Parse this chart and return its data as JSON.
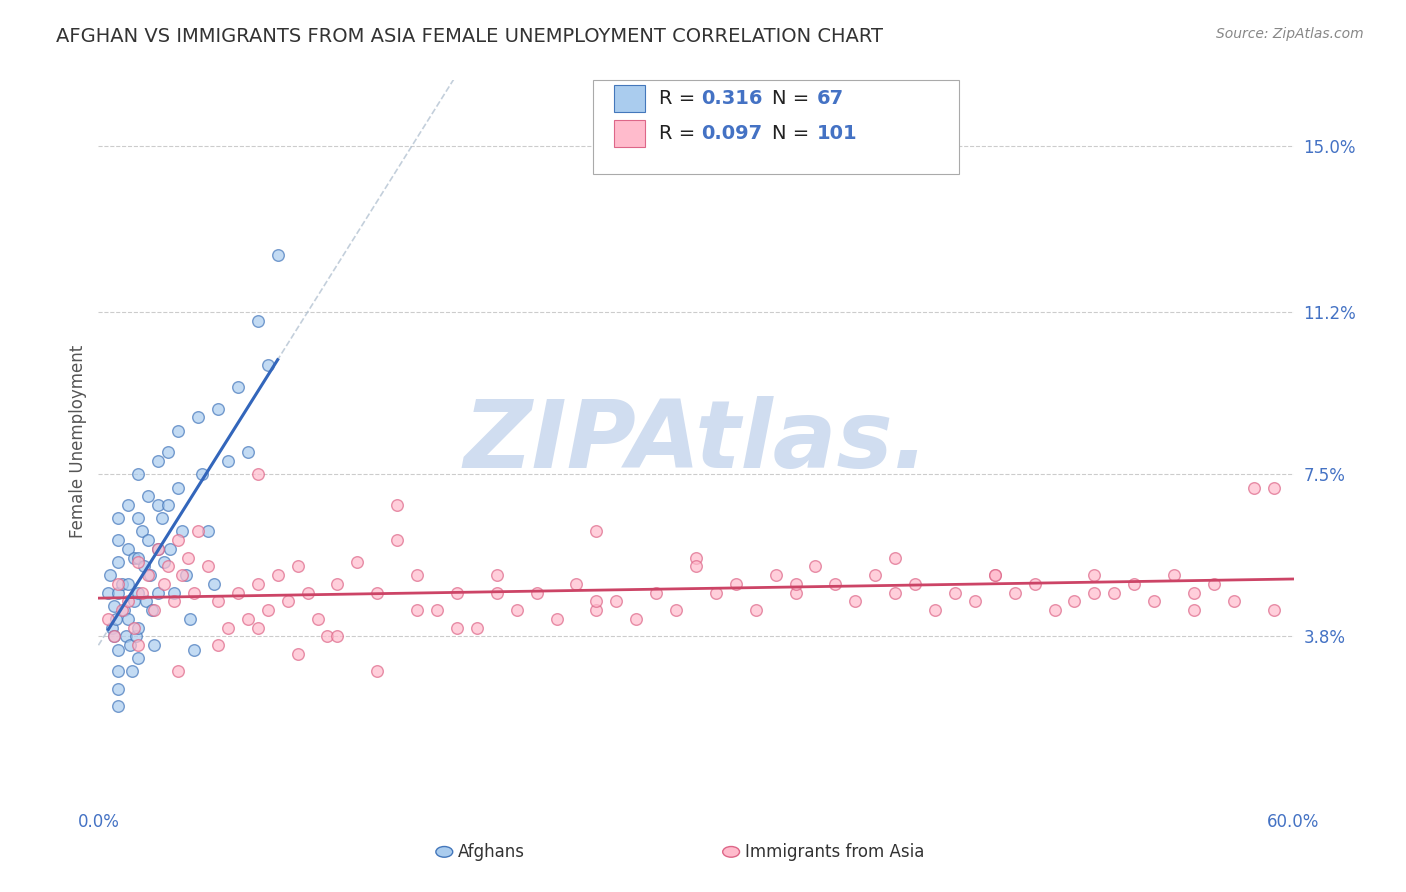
{
  "title": "AFGHAN VS IMMIGRANTS FROM ASIA FEMALE UNEMPLOYMENT CORRELATION CHART",
  "source": "Source: ZipAtlas.com",
  "watermark": "ZIPAtlas.",
  "ylabel": "Female Unemployment",
  "xlim": [
    0.0,
    0.6
  ],
  "ylim": [
    0.0,
    0.165
  ],
  "yticks_right": [
    0.038,
    0.075,
    0.112,
    0.15
  ],
  "ytick_labels_right": [
    "3.8%",
    "7.5%",
    "11.2%",
    "15.0%"
  ],
  "grid_color": "#cccccc",
  "background_color": "#ffffff",
  "series1_color": "#aaccee",
  "series1_edge": "#4477bb",
  "series2_color": "#ffbbcc",
  "series2_edge": "#dd6688",
  "line1_color": "#3366bb",
  "line2_color": "#cc4466",
  "dash_line_color": "#aabbdd",
  "R1": 0.316,
  "N1": 67,
  "R2": 0.097,
  "N2": 101,
  "legend_label1": "Afghans",
  "legend_label2": "Immigrants from Asia",
  "title_color": "#333333",
  "title_fontsize": 14,
  "axis_label_color": "#555555",
  "tick_label_color": "#4472c4",
  "watermark_color": "#d0ddf0",
  "legend_text_color": "#4472c4",
  "afghans_x": [
    0.005,
    0.006,
    0.007,
    0.008,
    0.008,
    0.009,
    0.01,
    0.01,
    0.01,
    0.01,
    0.01,
    0.01,
    0.01,
    0.01,
    0.012,
    0.013,
    0.014,
    0.015,
    0.015,
    0.015,
    0.015,
    0.016,
    0.017,
    0.018,
    0.018,
    0.019,
    0.02,
    0.02,
    0.02,
    0.02,
    0.02,
    0.02,
    0.022,
    0.023,
    0.024,
    0.025,
    0.025,
    0.026,
    0.027,
    0.028,
    0.03,
    0.03,
    0.03,
    0.03,
    0.032,
    0.033,
    0.035,
    0.035,
    0.036,
    0.038,
    0.04,
    0.04,
    0.042,
    0.044,
    0.046,
    0.048,
    0.05,
    0.052,
    0.055,
    0.058,
    0.06,
    0.065,
    0.07,
    0.075,
    0.08,
    0.085,
    0.09
  ],
  "afghans_y": [
    0.048,
    0.052,
    0.04,
    0.045,
    0.038,
    0.042,
    0.055,
    0.06,
    0.065,
    0.048,
    0.035,
    0.03,
    0.026,
    0.022,
    0.05,
    0.044,
    0.038,
    0.068,
    0.058,
    0.05,
    0.042,
    0.036,
    0.03,
    0.056,
    0.046,
    0.038,
    0.075,
    0.065,
    0.056,
    0.048,
    0.04,
    0.033,
    0.062,
    0.054,
    0.046,
    0.07,
    0.06,
    0.052,
    0.044,
    0.036,
    0.078,
    0.068,
    0.058,
    0.048,
    0.065,
    0.055,
    0.08,
    0.068,
    0.058,
    0.048,
    0.085,
    0.072,
    0.062,
    0.052,
    0.042,
    0.035,
    0.088,
    0.075,
    0.062,
    0.05,
    0.09,
    0.078,
    0.095,
    0.08,
    0.11,
    0.1,
    0.125
  ],
  "asia_x": [
    0.005,
    0.008,
    0.01,
    0.012,
    0.015,
    0.018,
    0.02,
    0.022,
    0.025,
    0.028,
    0.03,
    0.033,
    0.035,
    0.038,
    0.04,
    0.042,
    0.045,
    0.048,
    0.05,
    0.055,
    0.06,
    0.065,
    0.07,
    0.075,
    0.08,
    0.085,
    0.09,
    0.095,
    0.1,
    0.105,
    0.11,
    0.115,
    0.12,
    0.13,
    0.14,
    0.15,
    0.16,
    0.17,
    0.18,
    0.19,
    0.2,
    0.21,
    0.22,
    0.23,
    0.24,
    0.25,
    0.26,
    0.27,
    0.28,
    0.29,
    0.3,
    0.31,
    0.32,
    0.33,
    0.34,
    0.35,
    0.36,
    0.37,
    0.38,
    0.39,
    0.4,
    0.41,
    0.42,
    0.43,
    0.44,
    0.45,
    0.46,
    0.47,
    0.48,
    0.49,
    0.5,
    0.51,
    0.52,
    0.53,
    0.54,
    0.55,
    0.56,
    0.57,
    0.58,
    0.59,
    0.02,
    0.04,
    0.06,
    0.08,
    0.1,
    0.12,
    0.14,
    0.16,
    0.18,
    0.2,
    0.25,
    0.3,
    0.35,
    0.4,
    0.45,
    0.5,
    0.55,
    0.08,
    0.15,
    0.25,
    0.59
  ],
  "asia_y": [
    0.042,
    0.038,
    0.05,
    0.044,
    0.046,
    0.04,
    0.055,
    0.048,
    0.052,
    0.044,
    0.058,
    0.05,
    0.054,
    0.046,
    0.06,
    0.052,
    0.056,
    0.048,
    0.062,
    0.054,
    0.046,
    0.04,
    0.048,
    0.042,
    0.05,
    0.044,
    0.052,
    0.046,
    0.054,
    0.048,
    0.042,
    0.038,
    0.05,
    0.055,
    0.048,
    0.06,
    0.052,
    0.044,
    0.048,
    0.04,
    0.052,
    0.044,
    0.048,
    0.042,
    0.05,
    0.044,
    0.046,
    0.042,
    0.048,
    0.044,
    0.056,
    0.048,
    0.05,
    0.044,
    0.052,
    0.048,
    0.054,
    0.05,
    0.046,
    0.052,
    0.048,
    0.05,
    0.044,
    0.048,
    0.046,
    0.052,
    0.048,
    0.05,
    0.044,
    0.046,
    0.052,
    0.048,
    0.05,
    0.046,
    0.052,
    0.048,
    0.05,
    0.046,
    0.072,
    0.044,
    0.036,
    0.03,
    0.036,
    0.04,
    0.034,
    0.038,
    0.03,
    0.044,
    0.04,
    0.048,
    0.046,
    0.054,
    0.05,
    0.056,
    0.052,
    0.048,
    0.044,
    0.075,
    0.068,
    0.062,
    0.072
  ]
}
